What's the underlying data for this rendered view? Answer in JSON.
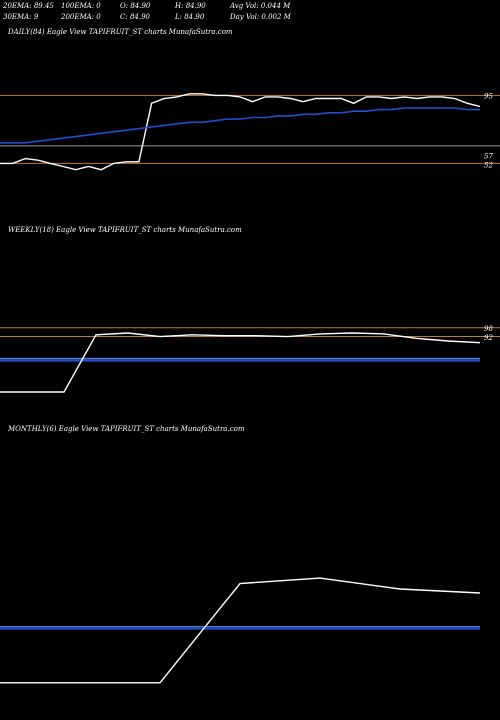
{
  "header": {
    "row1": [
      "20EMA: 89.45",
      "100EMA: 0",
      "O: 84.90",
      "H: 84.90",
      "Avg Vol: 0.044 M"
    ],
    "row2": [
      "30EMA: 9",
      "200EMA: 0",
      "C: 84.90",
      "L: 84.90",
      "Day Vol: 0.002 M"
    ]
  },
  "colors": {
    "background": "#000000",
    "price_line": "#ffffff",
    "ema_line": "#1f4fd1",
    "band_line": "#c07a3a",
    "grey_line": "#9a9a9a"
  },
  "chart_data": [
    {
      "type": "line",
      "title": "DAILY(84) Eagle  View  TAPIFRUIT_ST charts MunafaSutra.com",
      "ylim": [
        20,
        130
      ],
      "y_ticks": [
        95,
        57,
        52
      ],
      "hlines": {
        "band": [
          95,
          52
        ],
        "grey": 65
      },
      "series": [
        {
          "role": "price",
          "values": [
            52,
            52,
            55,
            54,
            52,
            50,
            48,
            50,
            48,
            52,
            53,
            53,
            90,
            93,
            94,
            96,
            96,
            95,
            95,
            94,
            91,
            94,
            94,
            93,
            91,
            93,
            93,
            93,
            90,
            94,
            94,
            93,
            94,
            93,
            94,
            94,
            93,
            90,
            88
          ]
        },
        {
          "role": "ema",
          "values": [
            65,
            65,
            65,
            66,
            67,
            68,
            69,
            70,
            71,
            72,
            73,
            74,
            75,
            76,
            77,
            78,
            78,
            79,
            80,
            80,
            81,
            81,
            82,
            82,
            83,
            83,
            84,
            84,
            85,
            85,
            86,
            86,
            87,
            87,
            87,
            87,
            87,
            86,
            86
          ]
        }
      ]
    },
    {
      "type": "line",
      "title": "WEEKLY(18) Eagle  View  TAPIFRUIT_ST charts MunafaSutra.com",
      "ylim": [
        0,
        200
      ],
      "y_ticks": [
        98,
        92
      ],
      "hlines": {
        "band": [
          98,
          88
        ],
        "blue": 61
      },
      "series": [
        {
          "role": "price",
          "values": [
            25,
            25,
            25,
            90,
            92,
            88,
            90,
            89,
            89,
            88,
            91,
            92,
            91,
            86,
            83,
            81
          ]
        }
      ]
    },
    {
      "type": "line",
      "title": "MONTHLY(6) Eagle  View  TAPIFRUIT_ST charts MunafaSutra.com",
      "ylim": [
        0,
        200
      ],
      "y_ticks": [],
      "hlines": {
        "blue": 60
      },
      "series": [
        {
          "role": "price",
          "values": [
            20,
            20,
            20,
            93,
            97,
            89,
            86
          ]
        }
      ]
    }
  ]
}
